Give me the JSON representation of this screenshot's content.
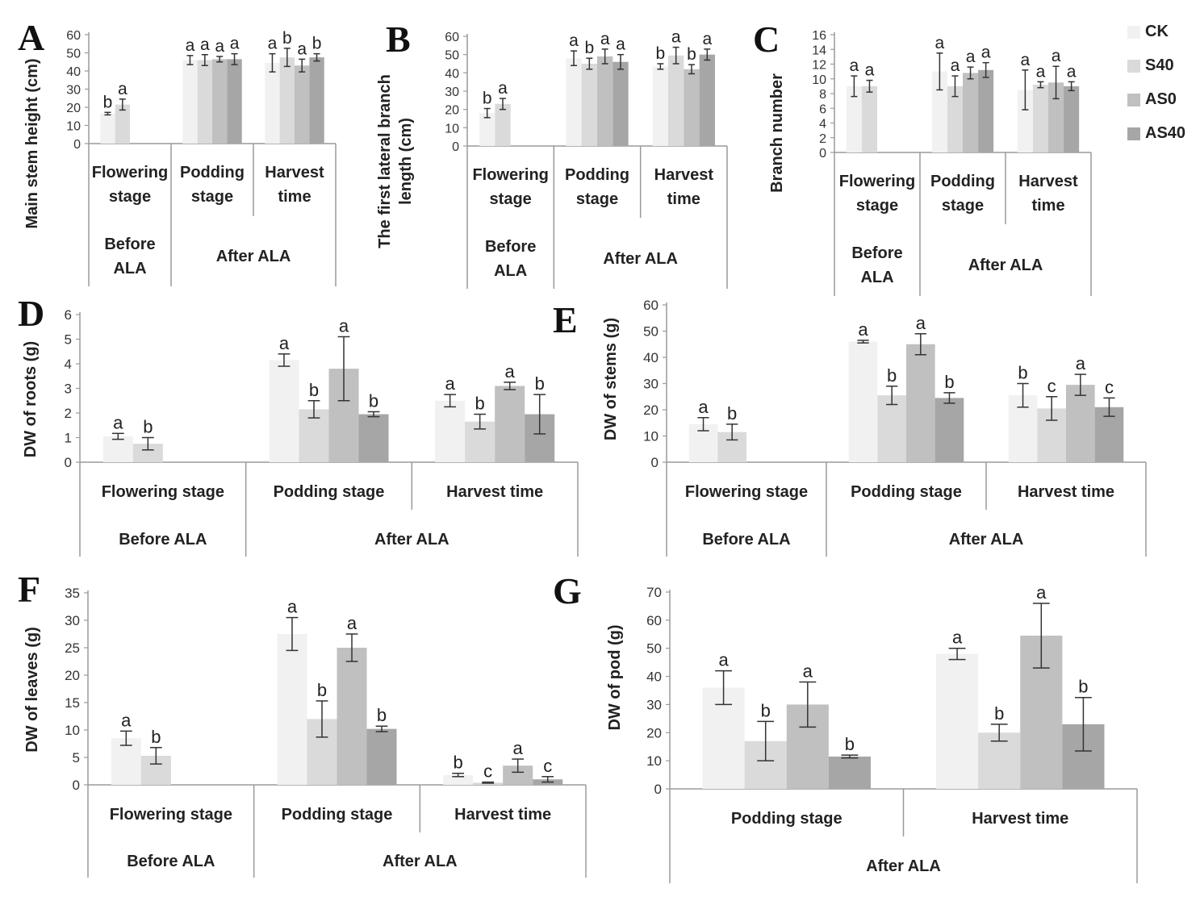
{
  "legend": [
    {
      "name": "CK",
      "color": "#f1f1f1"
    },
    {
      "name": "S40",
      "color": "#dadada"
    },
    {
      "name": "AS0",
      "color": "#c0c0c0"
    },
    {
      "name": "AS40",
      "color": "#a6a6a6"
    }
  ],
  "chart_data": [
    {
      "type": "bar",
      "letter": "A",
      "ylabel": "Main stem height (cm)",
      "ylim": [
        0,
        60
      ],
      "ystep": 10,
      "categories": [
        {
          "stage": "Flowering stage",
          "values": [
            16.5,
            21.5
          ],
          "errors": [
            0.7,
            3
          ],
          "letters": [
            "b",
            "a"
          ]
        },
        {
          "stage": "Podding stage",
          "values": [
            46,
            46,
            46.5,
            46.5
          ],
          "errors": [
            2.5,
            3,
            1.5,
            3
          ],
          "letters": [
            "a",
            "a",
            "a",
            "a"
          ]
        },
        {
          "stage": "Harvest time",
          "values": [
            44.5,
            47.5,
            43,
            47.5
          ],
          "errors": [
            5,
            5,
            3.5,
            2
          ],
          "letters": [
            "a",
            "b",
            "a",
            "b"
          ]
        }
      ],
      "groups": [
        {
          "label": "Before ALA",
          "span": 1
        },
        {
          "label": "After ALA",
          "span": 2
        }
      ]
    },
    {
      "type": "bar",
      "letter": "B",
      "ylabel": "The first lateral branch length (cm)",
      "ylim": [
        0,
        60
      ],
      "ystep": 10,
      "categories": [
        {
          "stage": "Flowering stage",
          "values": [
            18,
            23
          ],
          "errors": [
            2.5,
            3
          ],
          "letters": [
            "b",
            "a"
          ]
        },
        {
          "stage": "Podding stage",
          "values": [
            48,
            45,
            49,
            46
          ],
          "errors": [
            4,
            3,
            4,
            4
          ],
          "letters": [
            "a",
            "b",
            "a",
            "a"
          ]
        },
        {
          "stage": "Harvest time",
          "values": [
            43.5,
            49.5,
            42,
            50
          ],
          "errors": [
            1.5,
            4.5,
            2.5,
            3
          ],
          "letters": [
            "b",
            "a",
            "b",
            "a"
          ]
        }
      ],
      "groups": [
        {
          "label": "Before ALA",
          "span": 1
        },
        {
          "label": "After ALA",
          "span": 2
        }
      ]
    },
    {
      "type": "bar",
      "letter": "C",
      "ylabel": "Branch number",
      "ylim": [
        0,
        16
      ],
      "ystep": 2,
      "categories": [
        {
          "stage": "Flowering stage",
          "values": [
            9,
            9
          ],
          "errors": [
            1.4,
            0.8
          ],
          "letters": [
            "a",
            "a"
          ]
        },
        {
          "stage": "Podding stage",
          "values": [
            11,
            9,
            10.8,
            11.2
          ],
          "errors": [
            2.5,
            1.4,
            0.8,
            1
          ],
          "letters": [
            "a",
            "a",
            "a",
            "a"
          ]
        },
        {
          "stage": "Harvest time",
          "values": [
            8.5,
            9.2,
            9.5,
            9
          ],
          "errors": [
            2.7,
            0.4,
            2.2,
            0.6
          ],
          "letters": [
            "a",
            "a",
            "a",
            "a"
          ]
        }
      ],
      "groups": [
        {
          "label": "Before ALA",
          "span": 1
        },
        {
          "label": "After ALA",
          "span": 2
        }
      ]
    },
    {
      "type": "bar",
      "letter": "D",
      "ylabel": "DW of roots (g)",
      "ylim": [
        0,
        6
      ],
      "ystep": 1,
      "categories": [
        {
          "stage": "Flowering stage",
          "values": [
            1.05,
            0.75
          ],
          "errors": [
            0.12,
            0.25
          ],
          "letters": [
            "a",
            "b"
          ]
        },
        {
          "stage": "Podding stage",
          "values": [
            4.15,
            2.15,
            3.8,
            1.95
          ],
          "errors": [
            0.25,
            0.35,
            1.3,
            0.1
          ],
          "letters": [
            "a",
            "b",
            "a",
            "b"
          ]
        },
        {
          "stage": "Harvest time",
          "values": [
            2.5,
            1.65,
            3.1,
            1.95
          ],
          "errors": [
            0.25,
            0.3,
            0.15,
            0.8
          ],
          "letters": [
            "a",
            "b",
            "a",
            "b"
          ]
        }
      ],
      "groups": [
        {
          "label": "Before ALA",
          "span": 1
        },
        {
          "label": "After ALA",
          "span": 2
        }
      ]
    },
    {
      "type": "bar",
      "letter": "E",
      "ylabel": "DW of stems (g)",
      "ylim": [
        0,
        60
      ],
      "ystep": 10,
      "categories": [
        {
          "stage": "Flowering stage",
          "values": [
            14.5,
            11.5
          ],
          "errors": [
            2.5,
            3
          ],
          "letters": [
            "a",
            "b"
          ]
        },
        {
          "stage": "Podding stage",
          "values": [
            46,
            25.5,
            45,
            24.5
          ],
          "errors": [
            0.5,
            3.5,
            4,
            2
          ],
          "letters": [
            "a",
            "b",
            "a",
            "b"
          ]
        },
        {
          "stage": "Harvest time",
          "values": [
            25.5,
            20.5,
            29.5,
            21
          ],
          "errors": [
            4.5,
            4.5,
            4,
            3.5
          ],
          "letters": [
            "b",
            "c",
            "a",
            "c"
          ]
        }
      ],
      "groups": [
        {
          "label": "Before ALA",
          "span": 1
        },
        {
          "label": "After ALA",
          "span": 2
        }
      ]
    },
    {
      "type": "bar",
      "letter": "F",
      "ylabel": "DW of leaves (g)",
      "ylim": [
        0,
        35
      ],
      "ystep": 5,
      "categories": [
        {
          "stage": "Flowering stage",
          "values": [
            8.5,
            5.3
          ],
          "errors": [
            1.3,
            1.5
          ],
          "letters": [
            "a",
            "b"
          ]
        },
        {
          "stage": "Podding stage",
          "values": [
            27.5,
            12,
            25,
            10.2
          ],
          "errors": [
            3,
            3.3,
            2.5,
            0.5
          ],
          "letters": [
            "a",
            "b",
            "a",
            "b"
          ]
        },
        {
          "stage": "Harvest time",
          "values": [
            1.8,
            0.4,
            3.5,
            1
          ],
          "errors": [
            0.3,
            0.1,
            1.2,
            0.5
          ],
          "letters": [
            "b",
            "c",
            "a",
            "c"
          ]
        }
      ],
      "groups": [
        {
          "label": "Before ALA",
          "span": 1
        },
        {
          "label": "After ALA",
          "span": 2
        }
      ]
    },
    {
      "type": "bar",
      "letter": "G",
      "ylabel": "DW of pod (g)",
      "ylim": [
        0,
        70
      ],
      "ystep": 10,
      "categories": [
        {
          "stage": "Podding stage",
          "values": [
            36,
            17,
            30,
            11.5
          ],
          "errors": [
            6,
            7,
            8,
            0.5
          ],
          "letters": [
            "a",
            "b",
            "a",
            "b"
          ]
        },
        {
          "stage": "Harvest time",
          "values": [
            48,
            20,
            54.5,
            23
          ],
          "errors": [
            2,
            3,
            11.5,
            9.5
          ],
          "letters": [
            "a",
            "b",
            "a",
            "b"
          ]
        }
      ],
      "groups": [
        {
          "label": "After ALA",
          "span": 2
        }
      ]
    }
  ]
}
